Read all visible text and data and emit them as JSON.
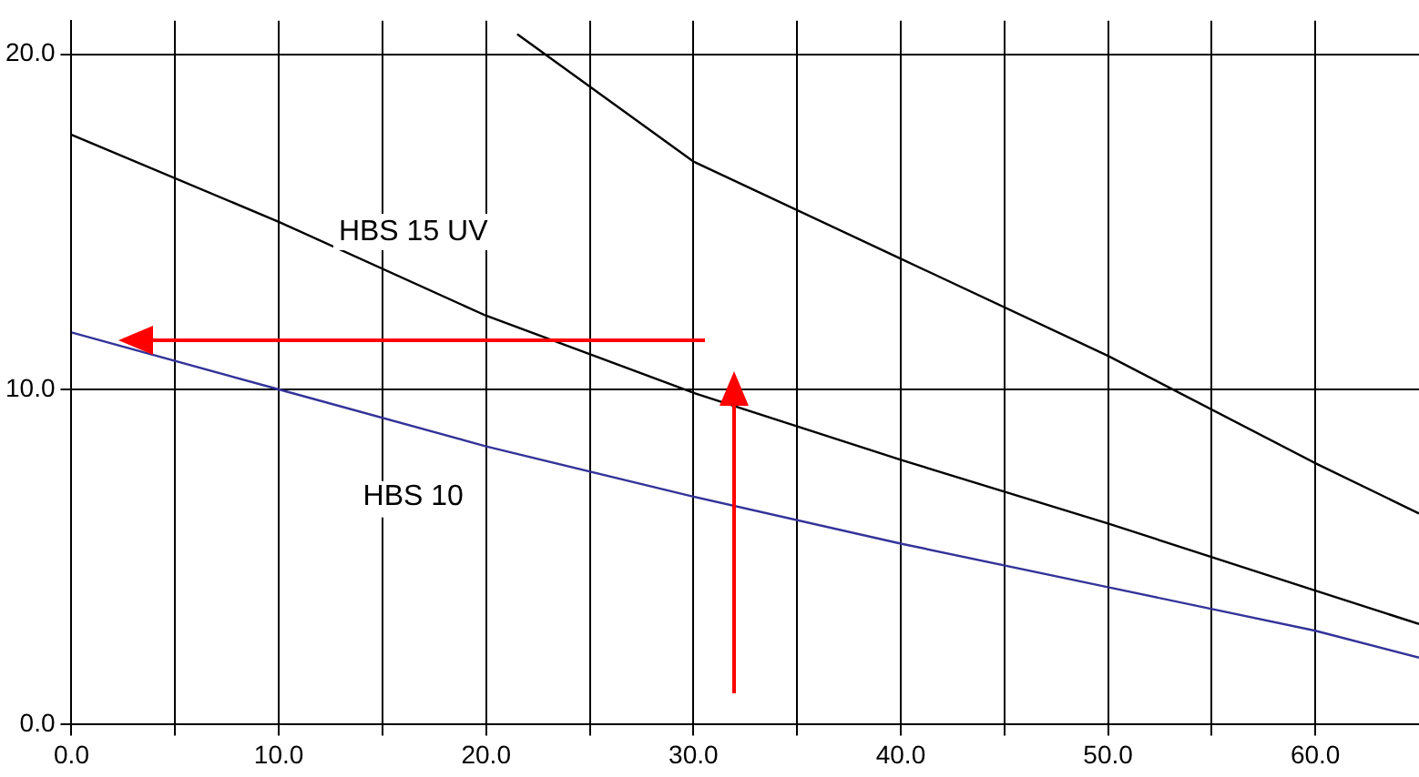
{
  "chart_data": {
    "type": "line",
    "series": [
      {
        "color": "#000000",
        "x": [
          21.5,
          30,
          40,
          50,
          60,
          65
        ],
        "values": [
          20.6,
          16.8,
          13.9,
          11.0,
          7.8,
          6.3
        ]
      },
      {
        "name": "HBS 15 UV",
        "color": "#000000",
        "x": [
          0,
          10,
          20,
          30,
          40,
          50,
          60,
          65
        ],
        "values": [
          17.6,
          15.0,
          12.2,
          9.9,
          7.9,
          6.0,
          4.0,
          3.0
        ]
      },
      {
        "name": "HBS 10",
        "color": "#333399",
        "x": [
          0,
          10,
          20,
          30,
          40,
          50,
          60,
          65
        ],
        "values": [
          11.7,
          10.0,
          8.3,
          6.8,
          5.4,
          4.1,
          2.8,
          2.0
        ]
      }
    ],
    "xlim": [
      0,
      65
    ],
    "ylim": [
      0,
      21
    ],
    "xticks": [
      {
        "value": 0,
        "label": "0.0"
      },
      {
        "value": 5,
        "label": null
      },
      {
        "value": 10,
        "label": "10.0"
      },
      {
        "value": 15,
        "label": null
      },
      {
        "value": 20,
        "label": "20.0"
      },
      {
        "value": 25,
        "label": null
      },
      {
        "value": 30,
        "label": "30.0"
      },
      {
        "value": 35,
        "label": null
      },
      {
        "value": 40,
        "label": "40.0"
      },
      {
        "value": 45,
        "label": null
      },
      {
        "value": 50,
        "label": "50.0"
      },
      {
        "value": 55,
        "label": null
      },
      {
        "value": 60,
        "label": "60.0"
      }
    ],
    "yticks": [
      {
        "value": 0,
        "label": "0.0"
      },
      {
        "value": 10,
        "label": "10.0"
      },
      {
        "value": 20,
        "label": "20.0"
      }
    ],
    "grid": true,
    "marker": "none",
    "line_style": "solid",
    "legend": false
  }
}
